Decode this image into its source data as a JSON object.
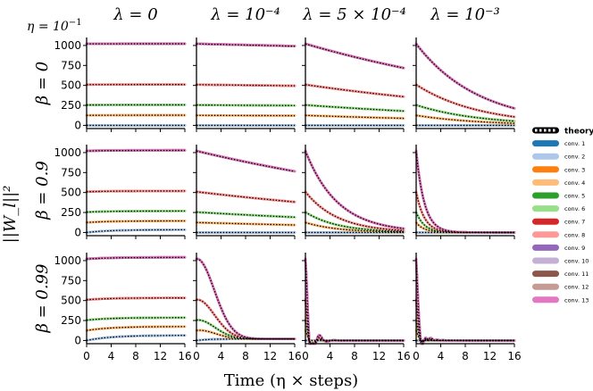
{
  "figure": {
    "eta_label": "η = 10",
    "eta_exp": "−1",
    "ylabel": "||W_l||²",
    "xlabel": "Time (η × steps)"
  },
  "chart_data": {
    "type": "line",
    "columns": [
      {
        "label": "λ = 0",
        "lambda": 0
      },
      {
        "label": "λ = 10⁻⁴",
        "lambda": 0.0001
      },
      {
        "label": "λ = 5 × 10⁻⁴",
        "lambda": 0.0005
      },
      {
        "label": "λ = 10⁻³",
        "lambda": 0.001
      }
    ],
    "rows": [
      {
        "label": "β = 0",
        "beta": 0
      },
      {
        "label": "β = 0.9",
        "beta": 0.9
      },
      {
        "label": "β = 0.99",
        "beta": 0.99
      }
    ],
    "xlim": [
      0,
      16
    ],
    "xticks": [
      0,
      4,
      8,
      12,
      16
    ],
    "ylim": [
      -40,
      1100
    ],
    "yticks": [
      0,
      250,
      500,
      750,
      1000
    ],
    "legend": {
      "position": "right",
      "theory_label": "theory",
      "entries": [
        {
          "name": "conv. 1",
          "color": "#1f77b4",
          "w0": 0,
          "growth0": [
            0,
            35,
            65
          ]
        },
        {
          "name": "conv. 2",
          "color": "#aec7e8",
          "w0": 1,
          "growth0": [
            0,
            35,
            65
          ]
        },
        {
          "name": "conv. 3",
          "color": "#ff7f0e",
          "w0": 125,
          "growth0": [
            2,
            20,
            50
          ]
        },
        {
          "name": "conv. 4",
          "color": "#ffbb78",
          "w0": 126,
          "growth0": [
            2,
            20,
            50
          ]
        },
        {
          "name": "conv. 5",
          "color": "#2ca02c",
          "w0": 255,
          "growth0": [
            2,
            14,
            32
          ]
        },
        {
          "name": "conv. 6",
          "color": "#98df8a",
          "w0": 256,
          "growth0": [
            2,
            14,
            32
          ]
        },
        {
          "name": "conv. 7",
          "color": "#d62728",
          "w0": 510,
          "growth0": [
            1,
            10,
            24
          ]
        },
        {
          "name": "conv. 8",
          "color": "#ff9896",
          "w0": 512,
          "growth0": [
            1,
            10,
            24
          ]
        },
        {
          "name": "conv. 9",
          "color": "#9467bd",
          "w0": 1020,
          "growth0": [
            1,
            8,
            20
          ]
        },
        {
          "name": "conv. 10",
          "color": "#c5b0d5",
          "w0": 1021,
          "growth0": [
            1,
            8,
            20
          ]
        },
        {
          "name": "conv. 11",
          "color": "#8c564b",
          "w0": 1022,
          "growth0": [
            1,
            8,
            20
          ]
        },
        {
          "name": "conv. 12",
          "color": "#c49c94",
          "w0": 1023,
          "growth0": [
            1,
            8,
            20
          ]
        },
        {
          "name": "conv. 13",
          "color": "#e377c2",
          "w0": 1024,
          "growth0": [
            1,
            8,
            20
          ]
        }
      ]
    }
  }
}
